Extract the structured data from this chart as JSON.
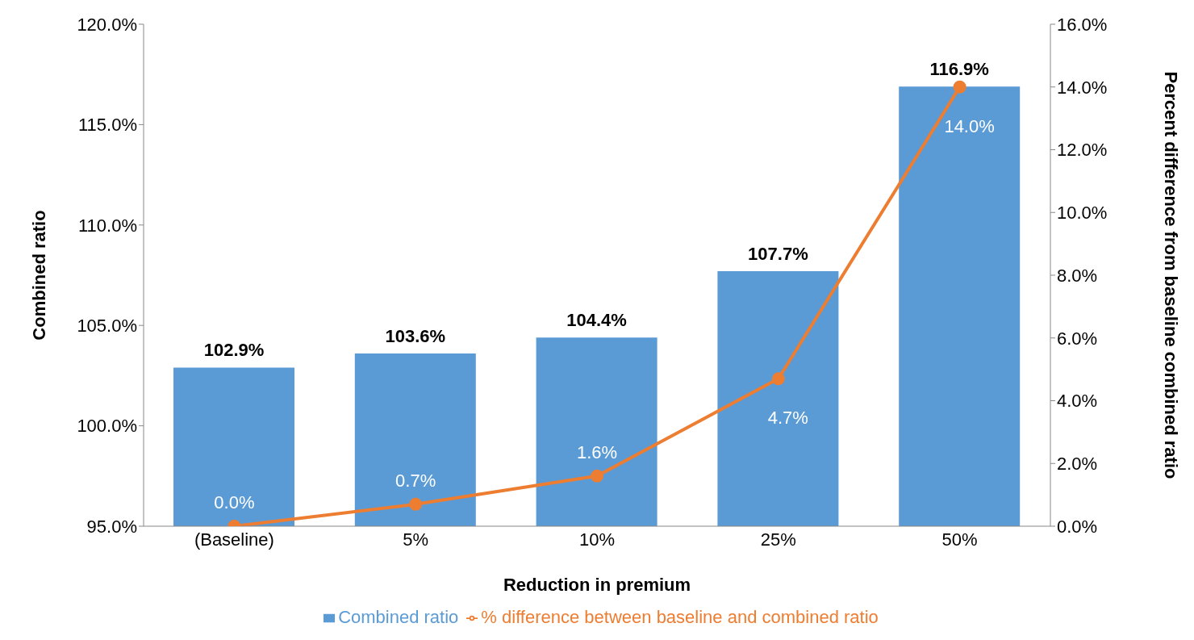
{
  "chart_data": {
    "type": "bar",
    "xlabel": "Reduction in premium",
    "ylabel": "Combined ratio",
    "y2label": "Percent difference from baseline combined ratio",
    "categories": [
      "(Baseline)",
      "5%",
      "10%",
      "25%",
      "50%"
    ],
    "series": [
      {
        "name": "Combined ratio",
        "color": "#5b9bd5",
        "values": [
          102.9,
          103.6,
          104.4,
          107.7,
          116.9
        ],
        "value_labels": [
          "102.9%",
          "103.6%",
          "104.4%",
          "107.7%",
          "116.9%"
        ]
      },
      {
        "name": "% difference between baseline and combined ratio",
        "type": "line",
        "axis": "y2",
        "color": "#ed7d31",
        "values": [
          0.0,
          0.7,
          1.6,
          4.7,
          14.0
        ],
        "value_labels": [
          "0.0%",
          "0.7%",
          "1.6%",
          "4.7%",
          "14.0%"
        ]
      }
    ],
    "ylim": [
      95,
      120
    ],
    "yticks": [
      {
        "value": 95,
        "label": "95.0%"
      },
      {
        "value": 100,
        "label": "100.0%"
      },
      {
        "value": 105,
        "label": "105.0%"
      },
      {
        "value": 110,
        "label": "110.0%"
      },
      {
        "value": 115,
        "label": "115.0%"
      },
      {
        "value": 120,
        "label": "120.0%"
      }
    ],
    "y2lim": [
      0,
      16
    ],
    "y2ticks": [
      {
        "value": 0,
        "label": "0.0%"
      },
      {
        "value": 2,
        "label": "2.0%"
      },
      {
        "value": 4,
        "label": "4.0%"
      },
      {
        "value": 6,
        "label": "6.0%"
      },
      {
        "value": 8,
        "label": "8.0%"
      },
      {
        "value": 10,
        "label": "10.0%"
      },
      {
        "value": 12,
        "label": "12.0%"
      },
      {
        "value": 14,
        "label": "14.0%"
      },
      {
        "value": 16,
        "label": "16.0%"
      }
    ],
    "marker": "circle",
    "legend": "bottom",
    "grid": false
  }
}
